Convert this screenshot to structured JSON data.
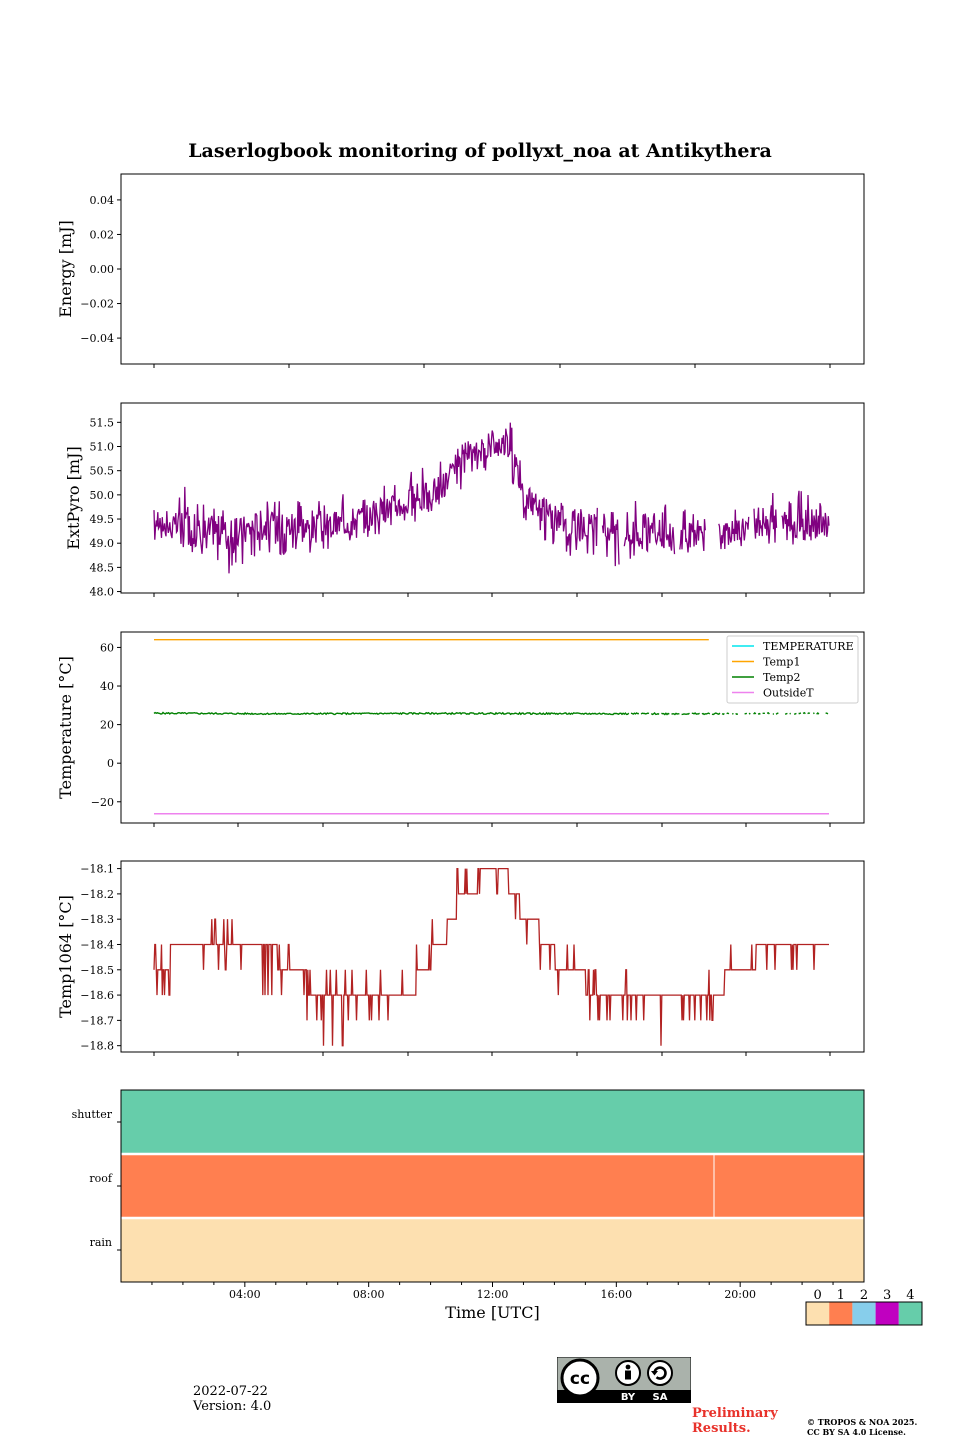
{
  "title": "Laserlogbook monitoring of pollyxt_noa at Antikythera",
  "footer": {
    "date": "2022-07-22",
    "version": "Version: 4.0",
    "preliminary": "Preliminary Results.",
    "copyright_1": "© TROPOS & NOA 2025.",
    "copyright_2": "CC BY SA 4.0 License.",
    "cc_badge": {
      "by": "BY",
      "sa": "SA",
      "cc": "cc"
    }
  },
  "colors": {
    "extpyro": "#800080",
    "temperature": "#00e5ee",
    "temp1": "#ffa500",
    "temp2": "#008000",
    "outsidet": "#ee82ee",
    "temp1064": "#b22222",
    "status_0": "#fde0b0",
    "status_1": "#ff7f50",
    "status_2": "#87ceeb",
    "status_3": "#c000c0",
    "status_4": "#66cdaa"
  },
  "chart_data": [
    {
      "type": "line",
      "ylabel": "Energy [mJ]",
      "y_ticks": [
        "0.04",
        "0.02",
        "0.00",
        "−0.02",
        "−0.04"
      ],
      "y_tick_values": [
        0.04,
        0.02,
        0.0,
        -0.02,
        -0.04
      ],
      "ylim": [
        -0.055,
        0.055
      ],
      "series": []
    },
    {
      "type": "line",
      "ylabel": "ExtPyro [mJ]",
      "y_ticks": [
        "51.5",
        "51.0",
        "50.5",
        "50.0",
        "49.5",
        "49.0",
        "48.5",
        "48.0"
      ],
      "y_tick_values": [
        51.5,
        51.0,
        50.5,
        50.0,
        49.5,
        49.0,
        48.5,
        48.0
      ],
      "ylim": [
        47.97,
        51.9
      ],
      "x_hours": [
        1.0,
        1.5,
        2.0,
        2.5,
        3.0,
        3.5,
        4.0,
        4.5,
        5.0,
        5.5,
        6.0,
        6.5,
        7.0,
        7.5,
        8.0,
        8.5,
        9.0,
        9.5,
        10.0,
        10.5,
        11.0,
        11.5,
        12.0,
        12.5,
        13.0,
        13.5,
        14.0,
        14.5,
        15.0,
        15.5,
        16.0,
        16.5,
        17.0,
        17.5,
        18.0,
        18.5,
        19.0,
        19.5,
        20.0,
        20.5,
        21.0,
        21.5,
        22.0,
        22.5,
        22.9
      ],
      "series": [
        {
          "name": "ExtPyro",
          "values": [
            49.5,
            49.3,
            49.4,
            49.2,
            49.3,
            49.1,
            49.3,
            49.4,
            49.3,
            49.4,
            49.3,
            49.3,
            49.4,
            49.5,
            49.6,
            49.7,
            49.8,
            49.9,
            50.0,
            50.3,
            50.6,
            50.9,
            51.0,
            51.1,
            50.0,
            49.7,
            49.5,
            49.4,
            49.3,
            49.4,
            49.3,
            49.2,
            49.3,
            49.2,
            49.1,
            49.2,
            49.3,
            49.2,
            49.3,
            49.4,
            49.5,
            49.4,
            49.4,
            49.3,
            49.4
          ],
          "low": [
            49.0,
            48.9,
            48.7,
            48.8,
            48.6,
            48.3,
            48.6,
            48.8,
            48.7,
            48.8,
            48.7,
            48.8,
            48.9,
            49.1,
            49.1,
            49.2,
            49.3,
            49.4,
            49.5,
            49.9,
            50.1,
            50.4,
            50.6,
            50.5,
            49.5,
            49.1,
            48.9,
            48.7,
            48.6,
            48.7,
            48.4,
            48.6,
            48.7,
            48.8,
            48.6,
            48.7,
            48.9,
            48.8,
            48.9,
            48.9,
            49.0,
            49.0,
            48.9,
            48.9,
            49.0
          ],
          "high": [
            49.8,
            49.7,
            50.2,
            50.0,
            49.8,
            49.7,
            49.8,
            50.0,
            49.9,
            50.0,
            49.9,
            49.9,
            50.0,
            50.1,
            50.1,
            50.2,
            50.3,
            50.6,
            50.6,
            51.0,
            51.1,
            51.3,
            51.4,
            51.7,
            50.5,
            50.1,
            49.9,
            49.8,
            49.7,
            49.8,
            49.8,
            49.9,
            49.9,
            49.8,
            49.8,
            49.7,
            49.7,
            49.6,
            49.8,
            50.1,
            50.1,
            49.9,
            50.2,
            49.8,
            50.1
          ]
        }
      ]
    },
    {
      "type": "line",
      "ylabel": "Temperature [°C]",
      "y_ticks": [
        "60",
        "40",
        "20",
        "0",
        "−20"
      ],
      "y_tick_values": [
        60,
        40,
        20,
        0,
        -20
      ],
      "ylim": [
        -31,
        68
      ],
      "legend_position": "top-right",
      "series": [
        {
          "name": "TEMPERATURE",
          "values": [],
          "x_hours": []
        },
        {
          "name": "Temp1",
          "x_hours": [
            1.0,
            19.0
          ],
          "values": [
            64.0,
            64.0
          ]
        },
        {
          "name": "Temp2",
          "x_hours": [
            1.0,
            5.0,
            10.0,
            14.0,
            18.0,
            22.9
          ],
          "values": [
            25.9,
            25.6,
            25.8,
            25.7,
            25.6,
            25.8
          ]
        },
        {
          "name": "OutsideT",
          "x_hours": [
            1.0,
            22.9
          ],
          "values": [
            -26.2,
            -26.2
          ]
        }
      ]
    },
    {
      "type": "line",
      "ylabel": "Temp1064 [°C]",
      "y_ticks": [
        "−18.1",
        "−18.2",
        "−18.3",
        "−18.4",
        "−18.5",
        "−18.6",
        "−18.7",
        "−18.8"
      ],
      "y_tick_values": [
        -18.1,
        -18.2,
        -18.3,
        -18.4,
        -18.5,
        -18.6,
        -18.7,
        -18.8
      ],
      "ylim": [
        -18.825,
        -18.07
      ],
      "x_hours": [
        1.0,
        1.5,
        2.0,
        2.5,
        3.0,
        3.5,
        4.0,
        4.5,
        5.0,
        5.5,
        6.0,
        6.5,
        7.0,
        7.5,
        8.0,
        8.5,
        9.0,
        9.5,
        10.0,
        10.5,
        11.0,
        11.5,
        12.0,
        12.5,
        13.0,
        13.5,
        14.0,
        14.5,
        15.0,
        15.5,
        16.0,
        16.5,
        17.0,
        17.5,
        18.0,
        18.5,
        19.0,
        19.5,
        20.0,
        20.5,
        21.0,
        21.5,
        22.0,
        22.5,
        22.9
      ],
      "series": [
        {
          "name": "Temp1064",
          "values": [
            -18.5,
            -18.45,
            -18.45,
            -18.45,
            -18.4,
            -18.4,
            -18.45,
            -18.45,
            -18.45,
            -18.5,
            -18.55,
            -18.6,
            -18.65,
            -18.65,
            -18.6,
            -18.6,
            -18.6,
            -18.55,
            -18.45,
            -18.35,
            -18.2,
            -18.15,
            -18.15,
            -18.15,
            -18.3,
            -18.35,
            -18.45,
            -18.5,
            -18.55,
            -18.6,
            -18.6,
            -18.6,
            -18.6,
            -18.65,
            -18.65,
            -18.6,
            -18.65,
            -18.55,
            -18.5,
            -18.45,
            -18.4,
            -18.4,
            -18.45,
            -18.45,
            -18.4
          ],
          "low": [
            -18.6,
            -18.6,
            -18.6,
            -18.5,
            -18.5,
            -18.5,
            -18.6,
            -18.6,
            -18.6,
            -18.6,
            -18.7,
            -18.8,
            -18.8,
            -18.7,
            -18.7,
            -18.7,
            -18.7,
            -18.6,
            -18.5,
            -18.4,
            -18.3,
            -18.2,
            -18.2,
            -18.3,
            -18.4,
            -18.5,
            -18.6,
            -18.6,
            -18.7,
            -18.7,
            -18.7,
            -18.7,
            -18.8,
            -18.8,
            -18.7,
            -18.8,
            -18.7,
            -18.6,
            -18.6,
            -18.5,
            -18.5,
            -18.5,
            -18.6,
            -18.5,
            -18.4
          ],
          "high": [
            -18.4,
            -18.4,
            -18.4,
            -18.3,
            -18.3,
            -18.3,
            -18.4,
            -18.4,
            -18.4,
            -18.4,
            -18.5,
            -18.5,
            -18.5,
            -18.5,
            -18.5,
            -18.5,
            -18.5,
            -18.4,
            -18.3,
            -18.1,
            -18.1,
            -18.1,
            -18.1,
            -18.1,
            -18.2,
            -18.3,
            -18.4,
            -18.4,
            -18.5,
            -18.5,
            -18.5,
            -18.5,
            -18.6,
            -18.6,
            -18.6,
            -18.5,
            -18.5,
            -18.4,
            -18.4,
            -18.4,
            -18.4,
            -18.4,
            -18.4,
            -18.4,
            -18.3
          ]
        }
      ]
    },
    {
      "type": "heatmap",
      "rows": [
        "shutter",
        "roof",
        "rain"
      ],
      "x_ticks": [
        "04:00",
        "08:00",
        "12:00",
        "16:00",
        "20:00"
      ],
      "x_tick_hours": [
        4,
        8,
        12,
        16,
        20
      ],
      "xlabel": "Time [UTC]",
      "xlim_hours": [
        0,
        24
      ],
      "status": {
        "shutter": [
          {
            "from": 0,
            "to": 24,
            "value": 4
          }
        ],
        "roof": [
          {
            "from": 0,
            "to": 24,
            "value": 1
          }
        ],
        "rain": [
          {
            "from": 0,
            "to": 24,
            "value": 0
          }
        ]
      },
      "colorbar": {
        "labels": [
          "0",
          "1",
          "2",
          "3",
          "4"
        ]
      }
    }
  ]
}
